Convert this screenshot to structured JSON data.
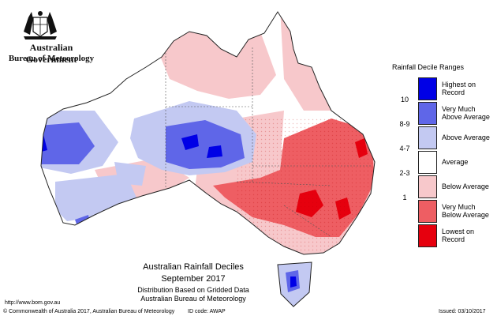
{
  "header": {
    "govt_name": "Australian Government",
    "bureau": "Bureau of Meteorology"
  },
  "legend": {
    "title": "Rainfall Decile Ranges",
    "items": [
      {
        "range": "",
        "label_lines": [
          "Highest on",
          "Record"
        ],
        "color": "#0000e6"
      },
      {
        "range": "10",
        "label_lines": [
          "Very Much",
          "Above Average"
        ],
        "color": "#5f66e8"
      },
      {
        "range": "8-9",
        "label_lines": [
          "Above Average",
          ""
        ],
        "color": "#c3c9f2"
      },
      {
        "range": "4-7",
        "label_lines": [
          "Average",
          ""
        ],
        "color": "#ffffff"
      },
      {
        "range": "2-3",
        "label_lines": [
          "Below Average",
          ""
        ],
        "color": "#f7c8cb"
      },
      {
        "range": "1",
        "label_lines": [
          "Very Much",
          "Below Average"
        ],
        "color": "#ee5e63"
      },
      {
        "range": "",
        "label_lines": [
          "Lowest on",
          "Record"
        ],
        "color": "#e6000e"
      }
    ]
  },
  "map_title": {
    "title": "Australian Rainfall Deciles",
    "period": "September 2017",
    "distribution": "Distribution Based on Gridded Data",
    "source": "Australian Bureau of Meteorology"
  },
  "footer": {
    "url": "http://www.bom.gov.au",
    "copyright": "© Commonwealth of Australia 2017, Australian Bureau of Meteorology",
    "id_code": "ID code: AWAP",
    "issued": "Issued: 03/10/2017"
  }
}
